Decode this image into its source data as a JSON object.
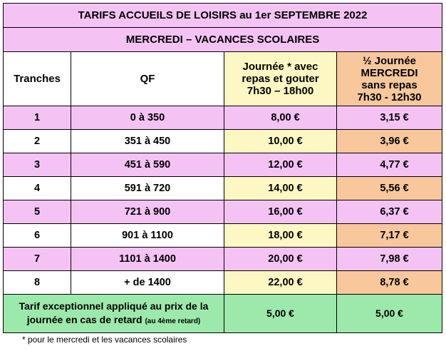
{
  "title": "TARIFS ACCUEILS DE LOISIRS au 1er SEPTEMBRE 2022",
  "subtitle": "MERCREDI – VACANCES SCOLAIRES",
  "headers": {
    "tranches": "Tranches",
    "qf": "QF",
    "journee": [
      "Journée * avec",
      "repas et gouter",
      "7h30 – 18h00"
    ],
    "demi": [
      "½ Journée",
      "MERCREDI",
      "sans repas",
      "7h30 - 12h30"
    ]
  },
  "rows": [
    {
      "tranche": "1",
      "qf": "0 à 350",
      "journee": "8,00 €",
      "demi": "3,15 €"
    },
    {
      "tranche": "2",
      "qf": "351 à 450",
      "journee": "10,00 €",
      "demi": "3,96 €"
    },
    {
      "tranche": "3",
      "qf": "451 à 590",
      "journee": "12,00 €",
      "demi": "4,77 €"
    },
    {
      "tranche": "4",
      "qf": "591 à 720",
      "journee": "14,00 €",
      "demi": "5,56 €"
    },
    {
      "tranche": "5",
      "qf": "721 à 900",
      "journee": "16,00 €",
      "demi": "6,37 €"
    },
    {
      "tranche": "6",
      "qf": "901 à 1100",
      "journee": "18,00 €",
      "demi": "7,17 €"
    },
    {
      "tranche": "7",
      "qf": "1101 à 1400",
      "journee": "20,00 €",
      "demi": "7,98 €"
    },
    {
      "tranche": "8",
      "qf": "+ de 1400",
      "journee": "22,00 €",
      "demi": "8,78 €"
    }
  ],
  "special": {
    "label_line1": "Tarif exceptionnel appliqué au prix de la",
    "label_line2": "journée en cas de retard",
    "label_note": "(au 4ème retard)",
    "journee": "5,00 €",
    "demi": "5,00 €"
  },
  "footnote": "* pour le mercredi et les vacances scolaires",
  "colors": {
    "pink": "#f4c3f4",
    "yellow": "#fdf8c3",
    "orange": "#f8c79c",
    "green": "#9de9ac"
  }
}
